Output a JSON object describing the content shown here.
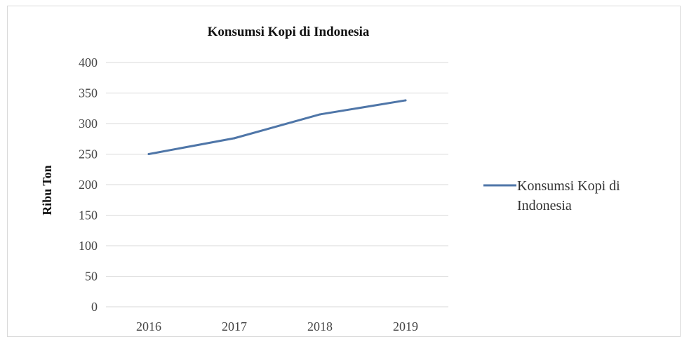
{
  "chart_data": {
    "type": "line",
    "title": "Konsumsi Kopi di Indonesia",
    "xlabel": "",
    "ylabel": "Ribu Ton",
    "categories": [
      "2016",
      "2017",
      "2018",
      "2019"
    ],
    "ylim": [
      0,
      400
    ],
    "yticks": [
      "0",
      "50",
      "100",
      "150",
      "200",
      "250",
      "300",
      "350",
      "400"
    ],
    "grid": true,
    "legend_position": "right",
    "series": [
      {
        "name": "Konsumsi Kopi di Indonesia",
        "legend_lines": [
          "Konsumsi Kopi di",
          "Indonesia"
        ],
        "values": [
          250,
          276,
          315,
          338
        ],
        "color": "#4f76a8"
      }
    ]
  }
}
